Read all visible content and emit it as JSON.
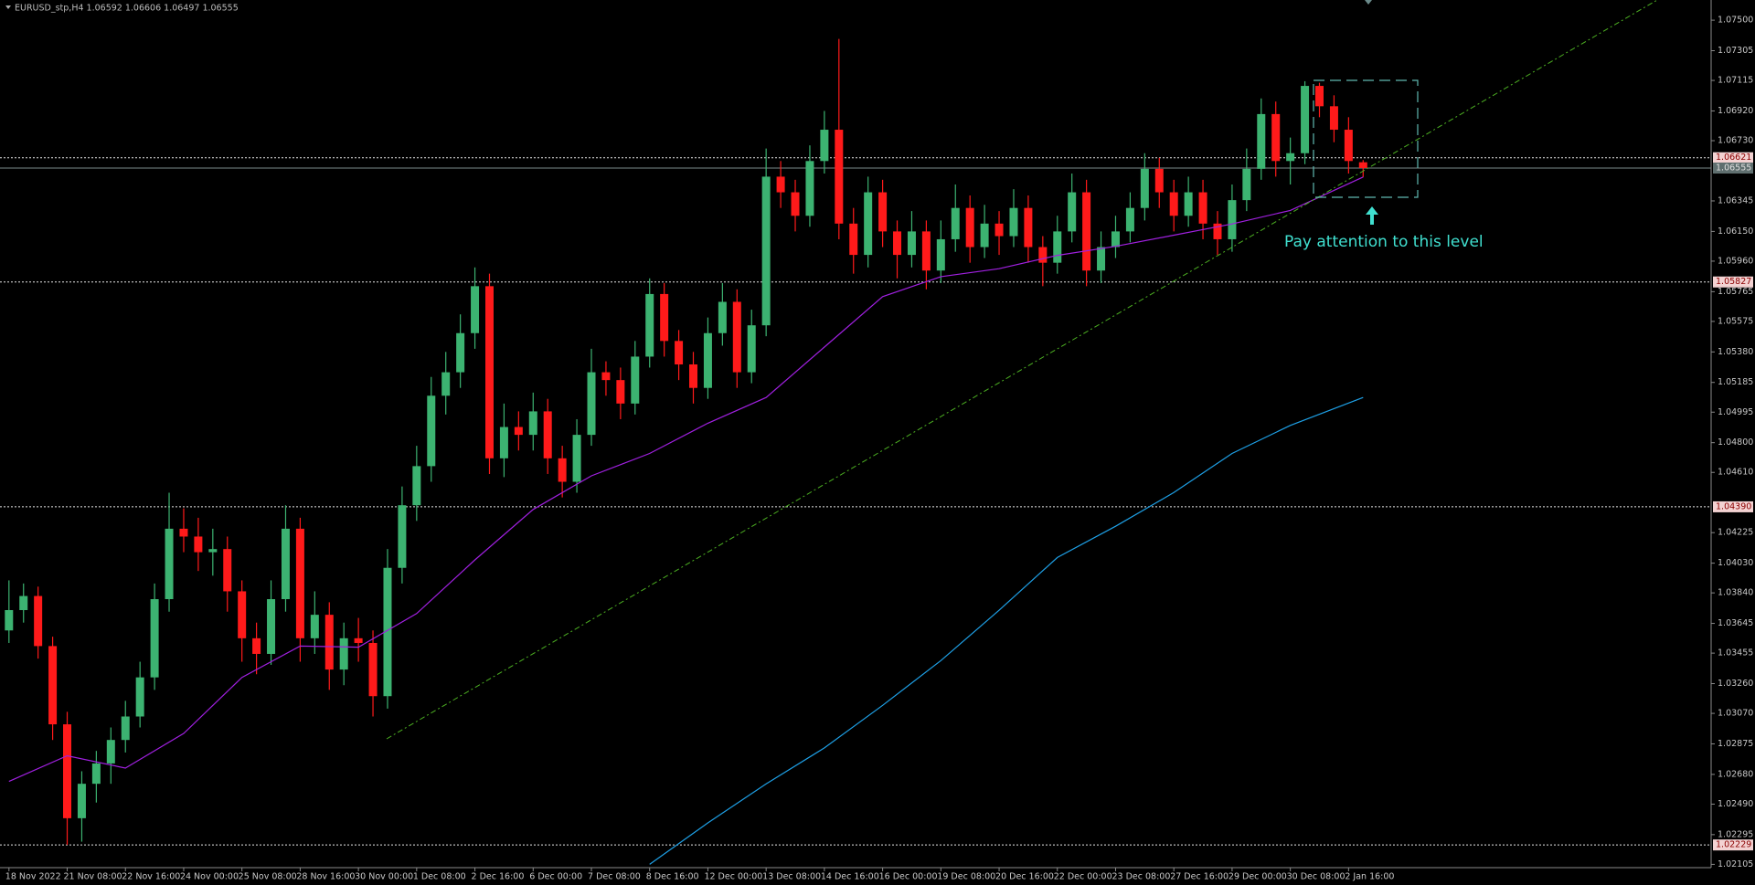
{
  "chart_data": {
    "type": "candlestick",
    "title": "EURUSD_stp,H4 1.06592 1.06606 1.06497 1.06555",
    "up_color": "#3cb371",
    "down_color": "#ff1a1a",
    "ylim": [
      1.02084,
      1.07629
    ],
    "yticks": [
      {
        "value": 1.075,
        "label": "1.07500"
      },
      {
        "value": 1.07305,
        "label": "1.07305"
      },
      {
        "value": 1.07115,
        "label": "1.07115"
      },
      {
        "value": 1.0692,
        "label": "1.06920"
      },
      {
        "value": 1.0673,
        "label": "1.06730"
      },
      {
        "value": 1.06345,
        "label": "1.06345"
      },
      {
        "value": 1.0615,
        "label": "1.06150"
      },
      {
        "value": 1.0596,
        "label": "1.05960"
      },
      {
        "value": 1.05765,
        "label": "1.05765"
      },
      {
        "value": 1.05575,
        "label": "1.05575"
      },
      {
        "value": 1.0538,
        "label": "1.05380"
      },
      {
        "value": 1.05185,
        "label": "1.05185"
      },
      {
        "value": 1.04995,
        "label": "1.04995"
      },
      {
        "value": 1.048,
        "label": "1.04800"
      },
      {
        "value": 1.0461,
        "label": "1.04610"
      },
      {
        "value": 1.04225,
        "label": "1.04225"
      },
      {
        "value": 1.0403,
        "label": "1.04030"
      },
      {
        "value": 1.0384,
        "label": "1.03840"
      },
      {
        "value": 1.03645,
        "label": "1.03645"
      },
      {
        "value": 1.03455,
        "label": "1.03455"
      },
      {
        "value": 1.0326,
        "label": "1.03260"
      },
      {
        "value": 1.0307,
        "label": "1.03070"
      },
      {
        "value": 1.02875,
        "label": "1.02875"
      },
      {
        "value": 1.0268,
        "label": "1.02680"
      },
      {
        "value": 1.0249,
        "label": "1.02490"
      },
      {
        "value": 1.02295,
        "label": "1.02295"
      },
      {
        "value": 1.02105,
        "label": "1.02105"
      }
    ],
    "levels": [
      1.06621,
      1.05827,
      {
        "value": 1.0439,
        "label": "1.04390"
      },
      1.02229
    ],
    "current_price": 1.06555,
    "categories": [
      "18 Nov 2022",
      null,
      null,
      null,
      "21 Nov 08:00",
      null,
      null,
      null,
      "22 Nov 16:00",
      null,
      null,
      null,
      "24 Nov 00:00",
      null,
      null,
      null,
      "25 Nov 08:00",
      null,
      null,
      null,
      "28 Nov 16:00",
      null,
      null,
      null,
      "30 Nov 00:00",
      null,
      null,
      null,
      "1 Dec 08:00",
      null,
      null,
      null,
      "2 Dec 16:00",
      null,
      null,
      null,
      "6 Dec 00:00",
      null,
      null,
      null,
      "7 Dec 08:00",
      null,
      null,
      null,
      "8 Dec 16:00",
      null,
      null,
      null,
      "12 Dec 00:00",
      null,
      null,
      null,
      "13 Dec 08:00",
      null,
      null,
      null,
      "14 Dec 16:00",
      null,
      null,
      null,
      "16 Dec 00:00",
      null,
      null,
      null,
      "19 Dec 08:00",
      null,
      null,
      null,
      "20 Dec 16:00",
      null,
      null,
      null,
      "22 Dec 00:00",
      null,
      null,
      null,
      "23 Dec 08:00",
      null,
      null,
      null,
      "27 Dec 16:00",
      null,
      null,
      null,
      "29 Dec 00:00",
      null,
      null,
      null,
      "30 Dec 08:00",
      null,
      null,
      null,
      "2 Jan 16:00",
      null
    ],
    "ohlc": [
      [
        1.036,
        1.0392,
        1.0352,
        1.0373
      ],
      [
        1.0373,
        1.039,
        1.0365,
        1.0382
      ],
      [
        1.0382,
        1.0388,
        1.0342,
        1.035
      ],
      [
        1.035,
        1.0356,
        1.029,
        1.03
      ],
      [
        1.03,
        1.0308,
        1.0223,
        1.024
      ],
      [
        1.024,
        1.027,
        1.0225,
        1.0262
      ],
      [
        1.0262,
        1.0283,
        1.025,
        1.0275
      ],
      [
        1.0275,
        1.0298,
        1.0262,
        1.029
      ],
      [
        1.029,
        1.0315,
        1.0282,
        1.0305
      ],
      [
        1.0305,
        1.034,
        1.0298,
        1.033
      ],
      [
        1.033,
        1.039,
        1.0322,
        1.038
      ],
      [
        1.038,
        1.0448,
        1.0372,
        1.0425
      ],
      [
        1.0425,
        1.0438,
        1.041,
        1.042
      ],
      [
        1.042,
        1.0432,
        1.0398,
        1.041
      ],
      [
        1.041,
        1.0425,
        1.0395,
        1.0412
      ],
      [
        1.0412,
        1.042,
        1.0372,
        1.0385
      ],
      [
        1.0385,
        1.0392,
        1.034,
        1.0355
      ],
      [
        1.0355,
        1.0365,
        1.0332,
        1.0345
      ],
      [
        1.0345,
        1.0392,
        1.0338,
        1.038
      ],
      [
        1.038,
        1.044,
        1.0372,
        1.0425
      ],
      [
        1.0425,
        1.0432,
        1.034,
        1.0355
      ],
      [
        1.0355,
        1.0385,
        1.0345,
        1.037
      ],
      [
        1.037,
        1.0378,
        1.0322,
        1.0335
      ],
      [
        1.0335,
        1.0365,
        1.0325,
        1.0355
      ],
      [
        1.0355,
        1.0368,
        1.034,
        1.0352
      ],
      [
        1.0352,
        1.036,
        1.0305,
        1.0318
      ],
      [
        1.0318,
        1.0412,
        1.031,
        1.04
      ],
      [
        1.04,
        1.0452,
        1.039,
        1.044
      ],
      [
        1.044,
        1.0478,
        1.043,
        1.0465
      ],
      [
        1.0465,
        1.0522,
        1.0455,
        1.051
      ],
      [
        1.051,
        1.0538,
        1.0498,
        1.0525
      ],
      [
        1.0525,
        1.0562,
        1.0515,
        1.055
      ],
      [
        1.055,
        1.0592,
        1.054,
        1.058
      ],
      [
        1.058,
        1.0588,
        1.046,
        1.047
      ],
      [
        1.047,
        1.0505,
        1.0458,
        1.049
      ],
      [
        1.049,
        1.05,
        1.0475,
        1.0485
      ],
      [
        1.0485,
        1.0512,
        1.0475,
        1.05
      ],
      [
        1.05,
        1.0508,
        1.046,
        1.047
      ],
      [
        1.047,
        1.0478,
        1.0445,
        1.0455
      ],
      [
        1.0455,
        1.0495,
        1.0448,
        1.0485
      ],
      [
        1.0485,
        1.054,
        1.0478,
        1.0525
      ],
      [
        1.0525,
        1.0532,
        1.051,
        1.052
      ],
      [
        1.052,
        1.0528,
        1.0495,
        1.0505
      ],
      [
        1.0505,
        1.0545,
        1.0498,
        1.0535
      ],
      [
        1.0535,
        1.0585,
        1.0528,
        1.0575
      ],
      [
        1.0575,
        1.0582,
        1.0535,
        1.0545
      ],
      [
        1.0545,
        1.0552,
        1.052,
        1.053
      ],
      [
        1.053,
        1.0538,
        1.0505,
        1.0515
      ],
      [
        1.0515,
        1.056,
        1.0508,
        1.055
      ],
      [
        1.055,
        1.0582,
        1.0542,
        1.057
      ],
      [
        1.057,
        1.0578,
        1.0515,
        1.0525
      ],
      [
        1.0525,
        1.0565,
        1.0518,
        1.0555
      ],
      [
        1.0555,
        1.0668,
        1.0548,
        1.065
      ],
      [
        1.065,
        1.066,
        1.063,
        1.064
      ],
      [
        1.064,
        1.0648,
        1.0615,
        1.0625
      ],
      [
        1.0625,
        1.067,
        1.0618,
        1.066
      ],
      [
        1.066,
        1.0692,
        1.0652,
        1.068
      ],
      [
        1.068,
        1.0738,
        1.061,
        1.062
      ],
      [
        1.062,
        1.063,
        1.0588,
        1.06
      ],
      [
        1.06,
        1.065,
        1.0592,
        1.064
      ],
      [
        1.064,
        1.0648,
        1.0605,
        1.0615
      ],
      [
        1.0615,
        1.0622,
        1.0585,
        1.06
      ],
      [
        1.06,
        1.0628,
        1.0592,
        1.0615
      ],
      [
        1.0615,
        1.0622,
        1.0578,
        1.059
      ],
      [
        1.059,
        1.0622,
        1.0582,
        1.061
      ],
      [
        1.061,
        1.0645,
        1.0602,
        1.063
      ],
      [
        1.063,
        1.0638,
        1.0595,
        1.0605
      ],
      [
        1.0605,
        1.0632,
        1.0598,
        1.062
      ],
      [
        1.062,
        1.0628,
        1.06,
        1.0612
      ],
      [
        1.0612,
        1.0642,
        1.0605,
        1.063
      ],
      [
        1.063,
        1.0638,
        1.0595,
        1.0605
      ],
      [
        1.0605,
        1.0612,
        1.058,
        1.0595
      ],
      [
        1.0595,
        1.0625,
        1.0588,
        1.0615
      ],
      [
        1.0615,
        1.0652,
        1.0608,
        1.064
      ],
      [
        1.064,
        1.0648,
        1.058,
        1.059
      ],
      [
        1.059,
        1.0615,
        1.0582,
        1.0605
      ],
      [
        1.0605,
        1.0625,
        1.0598,
        1.0615
      ],
      [
        1.0615,
        1.064,
        1.0608,
        1.063
      ],
      [
        1.063,
        1.0665,
        1.0622,
        1.0655
      ],
      [
        1.0655,
        1.0662,
        1.063,
        1.064
      ],
      [
        1.064,
        1.0648,
        1.0615,
        1.0625
      ],
      [
        1.0625,
        1.065,
        1.0618,
        1.064
      ],
      [
        1.064,
        1.0648,
        1.061,
        1.062
      ],
      [
        1.062,
        1.0628,
        1.06,
        1.061
      ],
      [
        1.061,
        1.0645,
        1.0602,
        1.0635
      ],
      [
        1.0635,
        1.0668,
        1.0628,
        1.0655
      ],
      [
        1.0655,
        1.07,
        1.0648,
        1.069
      ],
      [
        1.069,
        1.0698,
        1.065,
        1.066
      ],
      [
        1.066,
        1.0675,
        1.0645,
        1.0665
      ],
      [
        1.0665,
        1.0711,
        1.0658,
        1.0708
      ],
      [
        1.0708,
        1.071,
        1.0688,
        1.0695
      ],
      [
        1.0695,
        1.0702,
        1.0672,
        1.068
      ],
      [
        1.068,
        1.0688,
        1.0652,
        1.066
      ],
      [
        1.06592,
        1.06606,
        1.06497,
        1.06555
      ]
    ],
    "moving_averages": [
      {
        "color": "#a020e0",
        "x": [
          0,
          4,
          8,
          12,
          16,
          20,
          24,
          28,
          32,
          36,
          40,
          44,
          48,
          52,
          56,
          60,
          64,
          68,
          72,
          76,
          80,
          84,
          88,
          93
        ],
        "values": [
          1.02635,
          1.02799,
          1.0272,
          1.02942,
          1.033,
          1.035,
          1.03493,
          1.03708,
          1.04051,
          1.04373,
          1.04588,
          1.04731,
          1.04924,
          1.05089,
          1.05411,
          1.05733,
          1.05861,
          1.05912,
          1.05997,
          1.06055,
          1.06126,
          1.06198,
          1.06284,
          1.06498
        ]
      },
      {
        "color": "#1ea0e6",
        "x": [
          44,
          48,
          52,
          56,
          60,
          64,
          68,
          72,
          76,
          80,
          84,
          88,
          93
        ],
        "values": [
          1.02105,
          1.0237,
          1.0262,
          1.02849,
          1.03121,
          1.03407,
          1.03729,
          1.04066,
          1.04266,
          1.04481,
          1.04731,
          1.0491,
          1.05089
        ]
      }
    ],
    "annotation": "Pay attention to this level",
    "annotation_color": "#40e0d0"
  }
}
